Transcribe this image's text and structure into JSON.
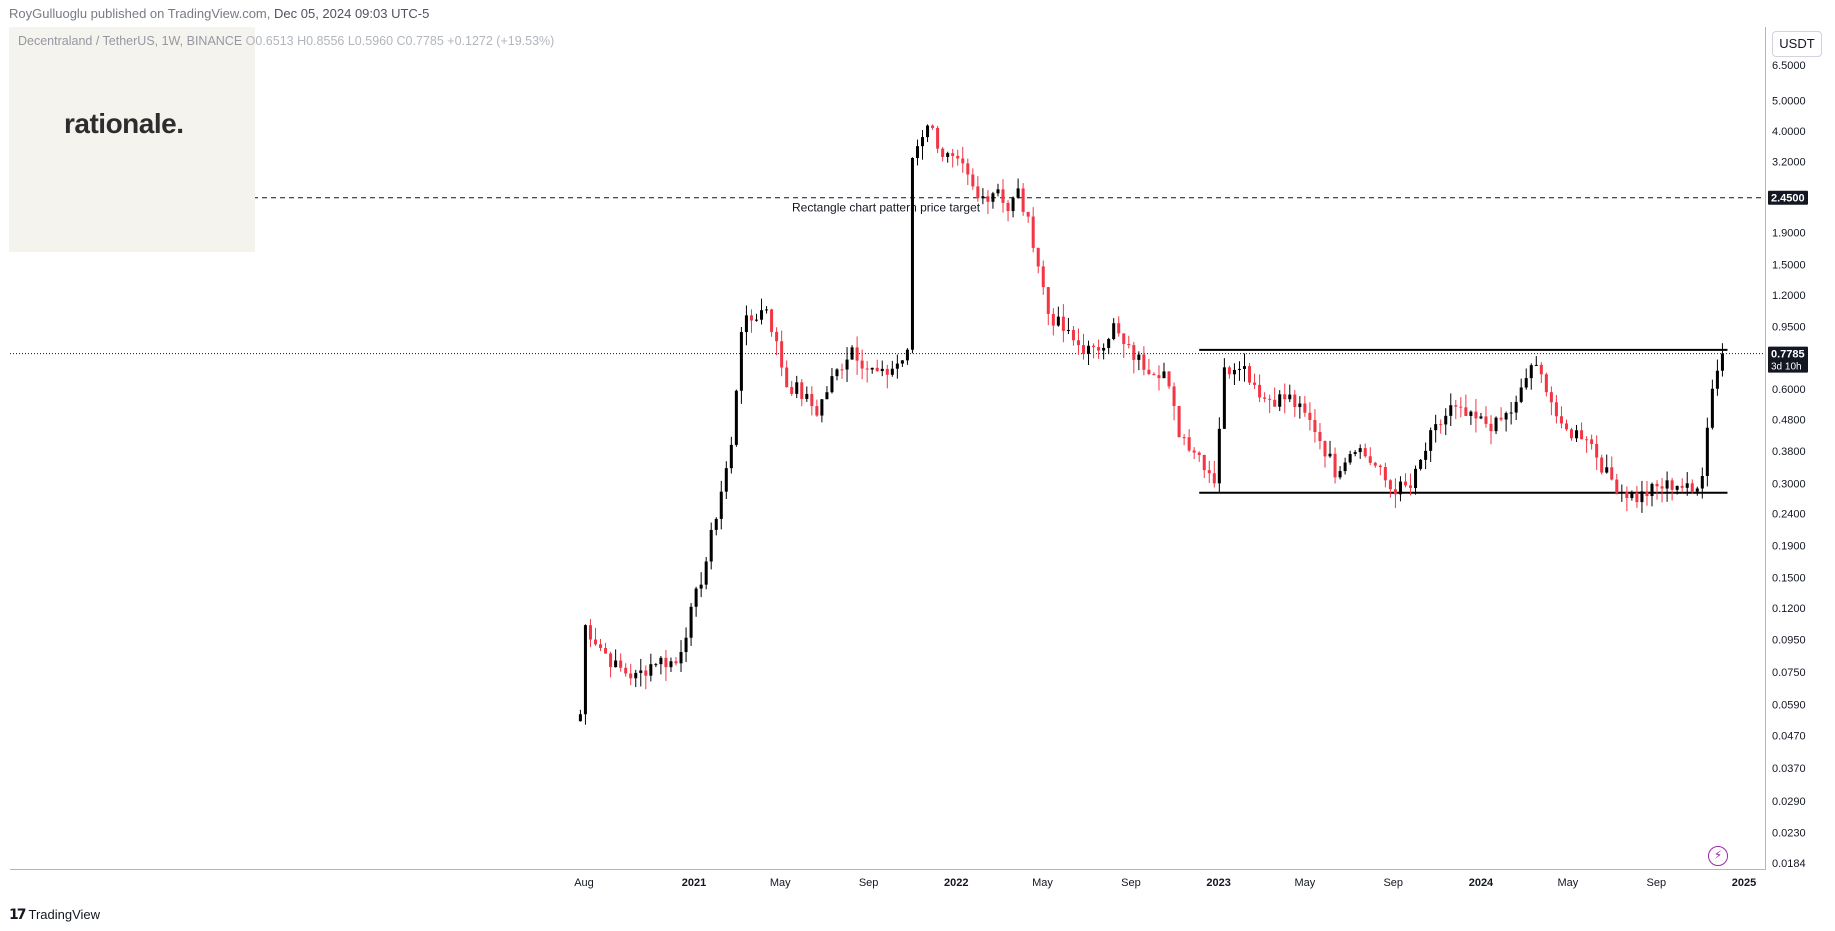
{
  "header": {
    "author": "RoyGulluoglu published on TradingView.com,",
    "datetime": "Dec 05, 2024 09:03 UTC-5"
  },
  "brand": {
    "name": "rationale."
  },
  "legend": {
    "symbol": "Decentraland / TetherUS, 1W, BINANCE",
    "open": "O0.6513",
    "high": "H0.8556",
    "low": "L0.5960",
    "close": "C0.7785",
    "change": "+0.1272 (+19.53%)"
  },
  "currency": "USDT",
  "footer": {
    "logo_text": "TradingView",
    "logo_icon": "tradingview-logo-icon"
  },
  "chart_data": {
    "type": "candlestick",
    "title": "Decentraland / TetherUS, 1W, BINANCE",
    "y_scale": "log",
    "ylim": [
      0.0184,
      6.5
    ],
    "y_ticks": [
      "6.5000",
      "5.0000",
      "4.0000",
      "3.2000",
      "1.9000",
      "1.5000",
      "1.2000",
      "0.9500",
      "0.6000",
      "0.4800",
      "0.3800",
      "0.3000",
      "0.2400",
      "0.1900",
      "0.1500",
      "0.1200",
      "0.0950",
      "0.0750",
      "0.0590",
      "0.0470",
      "0.0370",
      "0.0290",
      "0.0230",
      "0.0184"
    ],
    "x_ticks": [
      {
        "label": "Aug",
        "date": "2020-08-01",
        "bold": false
      },
      {
        "label": "2021",
        "date": "2021-01-01",
        "bold": true
      },
      {
        "label": "May",
        "date": "2021-05-01",
        "bold": false
      },
      {
        "label": "Sep",
        "date": "2021-09-01",
        "bold": false
      },
      {
        "label": "2022",
        "date": "2022-01-01",
        "bold": true
      },
      {
        "label": "May",
        "date": "2022-05-01",
        "bold": false
      },
      {
        "label": "Sep",
        "date": "2022-09-01",
        "bold": false
      },
      {
        "label": "2023",
        "date": "2023-01-01",
        "bold": true
      },
      {
        "label": "May",
        "date": "2023-05-01",
        "bold": false
      },
      {
        "label": "Sep",
        "date": "2023-09-01",
        "bold": false
      },
      {
        "label": "2024",
        "date": "2024-01-01",
        "bold": true
      },
      {
        "label": "May",
        "date": "2024-05-01",
        "bold": false
      },
      {
        "label": "Sep",
        "date": "2024-09-01",
        "bold": false
      },
      {
        "label": "2025",
        "date": "2025-01-01",
        "bold": true
      }
    ],
    "price_line": {
      "value": 0.7785,
      "label": "0.7785",
      "countdown": "3d 10h"
    },
    "target_line": {
      "value": 2.45,
      "label": "2.4500",
      "annotation": "Rectangle chart pattern price target"
    },
    "rectangle": {
      "upper": 0.8,
      "lower": 0.28,
      "start": "2022-12-05",
      "end": "2024-12-09"
    },
    "colors": {
      "up": "#000000",
      "down": "#f23645",
      "price_line": "#131722",
      "label_bg": "#131722"
    },
    "keypoints": [
      [
        "2020-07-27",
        0.055
      ],
      [
        "2020-08-03",
        0.105
      ],
      [
        "2020-08-24",
        0.09
      ],
      [
        "2020-09-14",
        0.078
      ],
      [
        "2020-10-12",
        0.072
      ],
      [
        "2020-11-09",
        0.082
      ],
      [
        "2020-12-07",
        0.08
      ],
      [
        "2020-12-28",
        0.115
      ],
      [
        "2021-01-18",
        0.17
      ],
      [
        "2021-02-08",
        0.285
      ],
      [
        "2021-02-22",
        0.39
      ],
      [
        "2021-03-08",
        0.95
      ],
      [
        "2021-03-22",
        1.0
      ],
      [
        "2021-04-12",
        1.1
      ],
      [
        "2021-05-10",
        0.62
      ],
      [
        "2021-05-24",
        0.6
      ],
      [
        "2021-06-21",
        0.51
      ],
      [
        "2021-07-12",
        0.64
      ],
      [
        "2021-08-09",
        0.82
      ],
      [
        "2021-08-30",
        0.7
      ],
      [
        "2021-09-20",
        0.66
      ],
      [
        "2021-10-25",
        0.77
      ],
      [
        "2021-11-01",
        3.3
      ],
      [
        "2021-11-22",
        4.3
      ],
      [
        "2021-12-13",
        3.4
      ],
      [
        "2022-01-10",
        3.0
      ],
      [
        "2022-01-31",
        2.4
      ],
      [
        "2022-02-28",
        2.65
      ],
      [
        "2022-03-14",
        2.25
      ],
      [
        "2022-03-28",
        2.55
      ],
      [
        "2022-04-18",
        1.8
      ],
      [
        "2022-05-09",
        1.05
      ],
      [
        "2022-06-13",
        0.85
      ],
      [
        "2022-07-11",
        0.78
      ],
      [
        "2022-08-08",
        0.95
      ],
      [
        "2022-08-22",
        0.82
      ],
      [
        "2022-09-19",
        0.72
      ],
      [
        "2022-10-17",
        0.68
      ],
      [
        "2022-11-07",
        0.44
      ],
      [
        "2022-12-05",
        0.37
      ],
      [
        "2022-12-26",
        0.31
      ],
      [
        "2023-01-09",
        0.68
      ],
      [
        "2023-01-30",
        0.74
      ],
      [
        "2023-03-06",
        0.56
      ],
      [
        "2023-04-10",
        0.56
      ],
      [
        "2023-05-15",
        0.45
      ],
      [
        "2023-06-12",
        0.33
      ],
      [
        "2023-07-10",
        0.4
      ],
      [
        "2023-08-07",
        0.34
      ],
      [
        "2023-08-28",
        0.29
      ],
      [
        "2023-09-25",
        0.29
      ],
      [
        "2023-10-23",
        0.42
      ],
      [
        "2023-11-20",
        0.52
      ],
      [
        "2023-12-18",
        0.48
      ],
      [
        "2024-01-22",
        0.46
      ],
      [
        "2024-02-19",
        0.53
      ],
      [
        "2024-03-11",
        0.72
      ],
      [
        "2024-04-01",
        0.62
      ],
      [
        "2024-04-22",
        0.44
      ],
      [
        "2024-05-27",
        0.43
      ],
      [
        "2024-06-24",
        0.32
      ],
      [
        "2024-07-15",
        0.285
      ],
      [
        "2024-08-05",
        0.27
      ],
      [
        "2024-09-02",
        0.29
      ],
      [
        "2024-09-30",
        0.3
      ],
      [
        "2024-10-21",
        0.28
      ],
      [
        "2024-11-04",
        0.33
      ],
      [
        "2024-11-18",
        0.62
      ],
      [
        "2024-12-02",
        0.7785
      ]
    ]
  }
}
